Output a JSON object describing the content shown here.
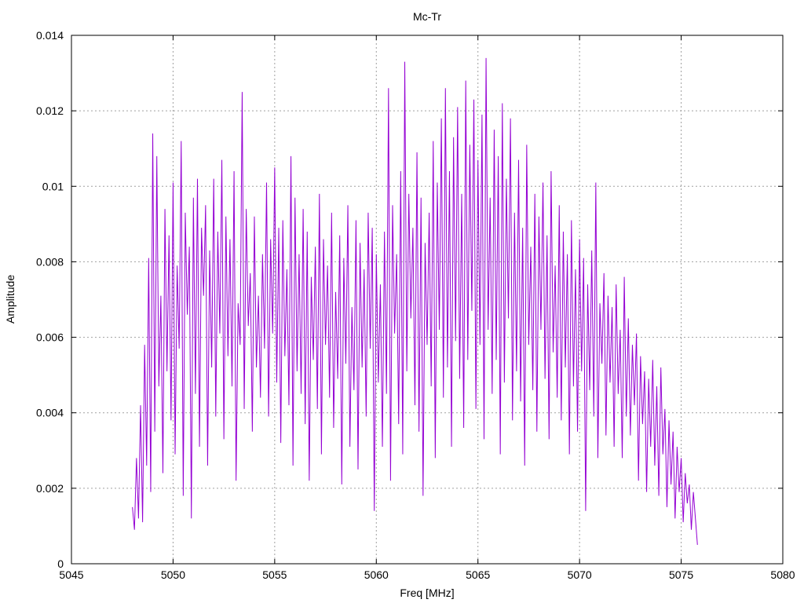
{
  "chart_data": {
    "type": "line",
    "title": "Mc-Tr",
    "xlabel": "Freq [MHz]",
    "ylabel": "Amplitude",
    "xlim": [
      5045,
      5080
    ],
    "ylim": [
      0,
      0.014
    ],
    "xticks": [
      5045,
      5050,
      5055,
      5060,
      5065,
      5070,
      5075,
      5080
    ],
    "xtick_labels": [
      "5045",
      "5050",
      "5055",
      "5060",
      "5065",
      "5070",
      "5075",
      "5080"
    ],
    "yticks": [
      0,
      0.002,
      0.004,
      0.006,
      0.008,
      0.01,
      0.012,
      0.014
    ],
    "ytick_labels": [
      "0",
      "0.002",
      "0.004",
      "0.006",
      "0.008",
      "0.01",
      "0.012",
      "0.014"
    ],
    "grid": true,
    "legend": "none",
    "series_color": "#9400d3",
    "series": [
      {
        "x_start": 5048.0,
        "x_step": 0.1,
        "values": [
          0.0015,
          0.0009,
          0.0028,
          0.0012,
          0.0042,
          0.0011,
          0.0058,
          0.0026,
          0.0081,
          0.0019,
          0.0114,
          0.0035,
          0.0108,
          0.0047,
          0.0071,
          0.0024,
          0.0094,
          0.0051,
          0.0087,
          0.0038,
          0.0101,
          0.0029,
          0.0079,
          0.0057,
          0.0112,
          0.0018,
          0.0093,
          0.0066,
          0.0084,
          0.0012,
          0.0097,
          0.0045,
          0.0102,
          0.0031,
          0.0089,
          0.0071,
          0.0095,
          0.0026,
          0.0083,
          0.0052,
          0.0102,
          0.0039,
          0.0088,
          0.0061,
          0.0107,
          0.0033,
          0.0092,
          0.0055,
          0.0086,
          0.0047,
          0.0104,
          0.0022,
          0.0069,
          0.0058,
          0.0125,
          0.0041,
          0.0094,
          0.0063,
          0.0077,
          0.0035,
          0.0092,
          0.0052,
          0.0071,
          0.0044,
          0.0082,
          0.0057,
          0.0101,
          0.0039,
          0.0086,
          0.0061,
          0.0105,
          0.0048,
          0.0089,
          0.0032,
          0.0091,
          0.0055,
          0.0078,
          0.0042,
          0.0108,
          0.0026,
          0.0097,
          0.0051,
          0.0082,
          0.0045,
          0.0094,
          0.0037,
          0.0088,
          0.0022,
          0.0076,
          0.0054,
          0.0084,
          0.0041,
          0.0098,
          0.0029,
          0.0086,
          0.0058,
          0.0079,
          0.0044,
          0.0093,
          0.0036,
          0.0072,
          0.0049,
          0.0087,
          0.0021,
          0.0081,
          0.0053,
          0.0095,
          0.0031,
          0.0068,
          0.0046,
          0.0091,
          0.0025,
          0.0085,
          0.0052,
          0.0078,
          0.0039,
          0.0093,
          0.0057,
          0.0089,
          0.0014,
          0.0082,
          0.0048,
          0.0074,
          0.0031,
          0.0088,
          0.0045,
          0.0126,
          0.0022,
          0.0095,
          0.0061,
          0.0082,
          0.0037,
          0.0104,
          0.0029,
          0.0133,
          0.0051,
          0.0098,
          0.0065,
          0.0089,
          0.0042,
          0.0109,
          0.0035,
          0.0097,
          0.0018,
          0.0085,
          0.0058,
          0.0093,
          0.0047,
          0.0112,
          0.0028,
          0.0101,
          0.0062,
          0.0118,
          0.0044,
          0.0126,
          0.0052,
          0.0104,
          0.0031,
          0.0113,
          0.0059,
          0.0121,
          0.0049,
          0.0098,
          0.0036,
          0.0128,
          0.0054,
          0.0111,
          0.0067,
          0.0123,
          0.0041,
          0.0107,
          0.0058,
          0.0119,
          0.0033,
          0.0134,
          0.0062,
          0.0097,
          0.0045,
          0.0115,
          0.0054,
          0.0108,
          0.0029,
          0.0122,
          0.0048,
          0.0102,
          0.0065,
          0.0118,
          0.0038,
          0.0093,
          0.0051,
          0.0107,
          0.0043,
          0.0089,
          0.0026,
          0.0111,
          0.0058,
          0.0084,
          0.0046,
          0.0098,
          0.0035,
          0.0092,
          0.0062,
          0.0101,
          0.0049,
          0.0087,
          0.0033,
          0.0104,
          0.0056,
          0.0079,
          0.0044,
          0.0095,
          0.0038,
          0.0088,
          0.0052,
          0.0082,
          0.0029,
          0.0091,
          0.0047,
          0.0078,
          0.0035,
          0.0086,
          0.0051,
          0.0081,
          0.0014,
          0.0074,
          0.0046,
          0.0083,
          0.0039,
          0.0101,
          0.0028,
          0.0069,
          0.0053,
          0.0077,
          0.0034,
          0.0071,
          0.0048,
          0.0068,
          0.0031,
          0.0074,
          0.0045,
          0.0062,
          0.0028,
          0.0076,
          0.0039,
          0.0065,
          0.0034,
          0.0058,
          0.0042,
          0.0061,
          0.0022,
          0.0055,
          0.0037,
          0.0051,
          0.0019,
          0.0049,
          0.0031,
          0.0054,
          0.0026,
          0.0047,
          0.0018,
          0.0052,
          0.0029,
          0.0041,
          0.0015,
          0.0038,
          0.0021,
          0.0035,
          0.0012,
          0.0031,
          0.0019,
          0.0028,
          0.0011,
          0.0024,
          0.0016,
          0.0021,
          0.0009,
          0.0019,
          0.0012,
          0.0005
        ]
      }
    ]
  }
}
